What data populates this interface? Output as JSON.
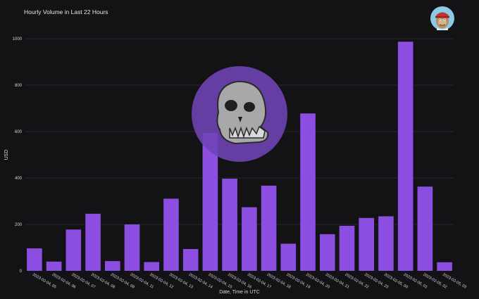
{
  "chart_data": {
    "type": "bar",
    "title": "Hourly Volume in Last 22 Hours",
    "xlabel": "Date, Time in UTC",
    "ylabel": "USD",
    "ylim": [
      0,
      1000
    ],
    "yticks": [
      0,
      200,
      400,
      600,
      800,
      1000
    ],
    "grid": true,
    "categories": [
      "2023-02-04, 05",
      "2023-02-04, 06",
      "2023-02-04, 07",
      "2023-02-04, 08",
      "2023-02-04, 09",
      "2023-02-04, 11",
      "2023-02-04, 12",
      "2023-02-04, 13",
      "2023-02-04, 14",
      "2023-02-04, 15",
      "2023-02-04, 16",
      "2023-02-04, 17",
      "2023-02-04, 18",
      "2023-02-04, 19",
      "2023-02-04, 20",
      "2023-02-04, 21",
      "2023-02-04, 22",
      "2023-02-04, 23",
      "2023-02-05, 00",
      "2023-02-05, 01",
      "2023-02-05, 02",
      "2023-02-05, 03"
    ],
    "values": [
      97,
      40,
      178,
      246,
      42,
      200,
      38,
      311,
      94,
      594,
      397,
      274,
      367,
      117,
      678,
      158,
      194,
      228,
      235,
      987,
      363,
      37
    ],
    "colors": {
      "bar": "#8b4ee0",
      "background": "#131316",
      "grid": "#2a2c3e",
      "text": "#d8d8d8",
      "watermark_circle": "#6f44b6"
    }
  },
  "icons": {
    "watermark": "ape-skull-logo",
    "avatar": "ape-avatar-icon"
  }
}
